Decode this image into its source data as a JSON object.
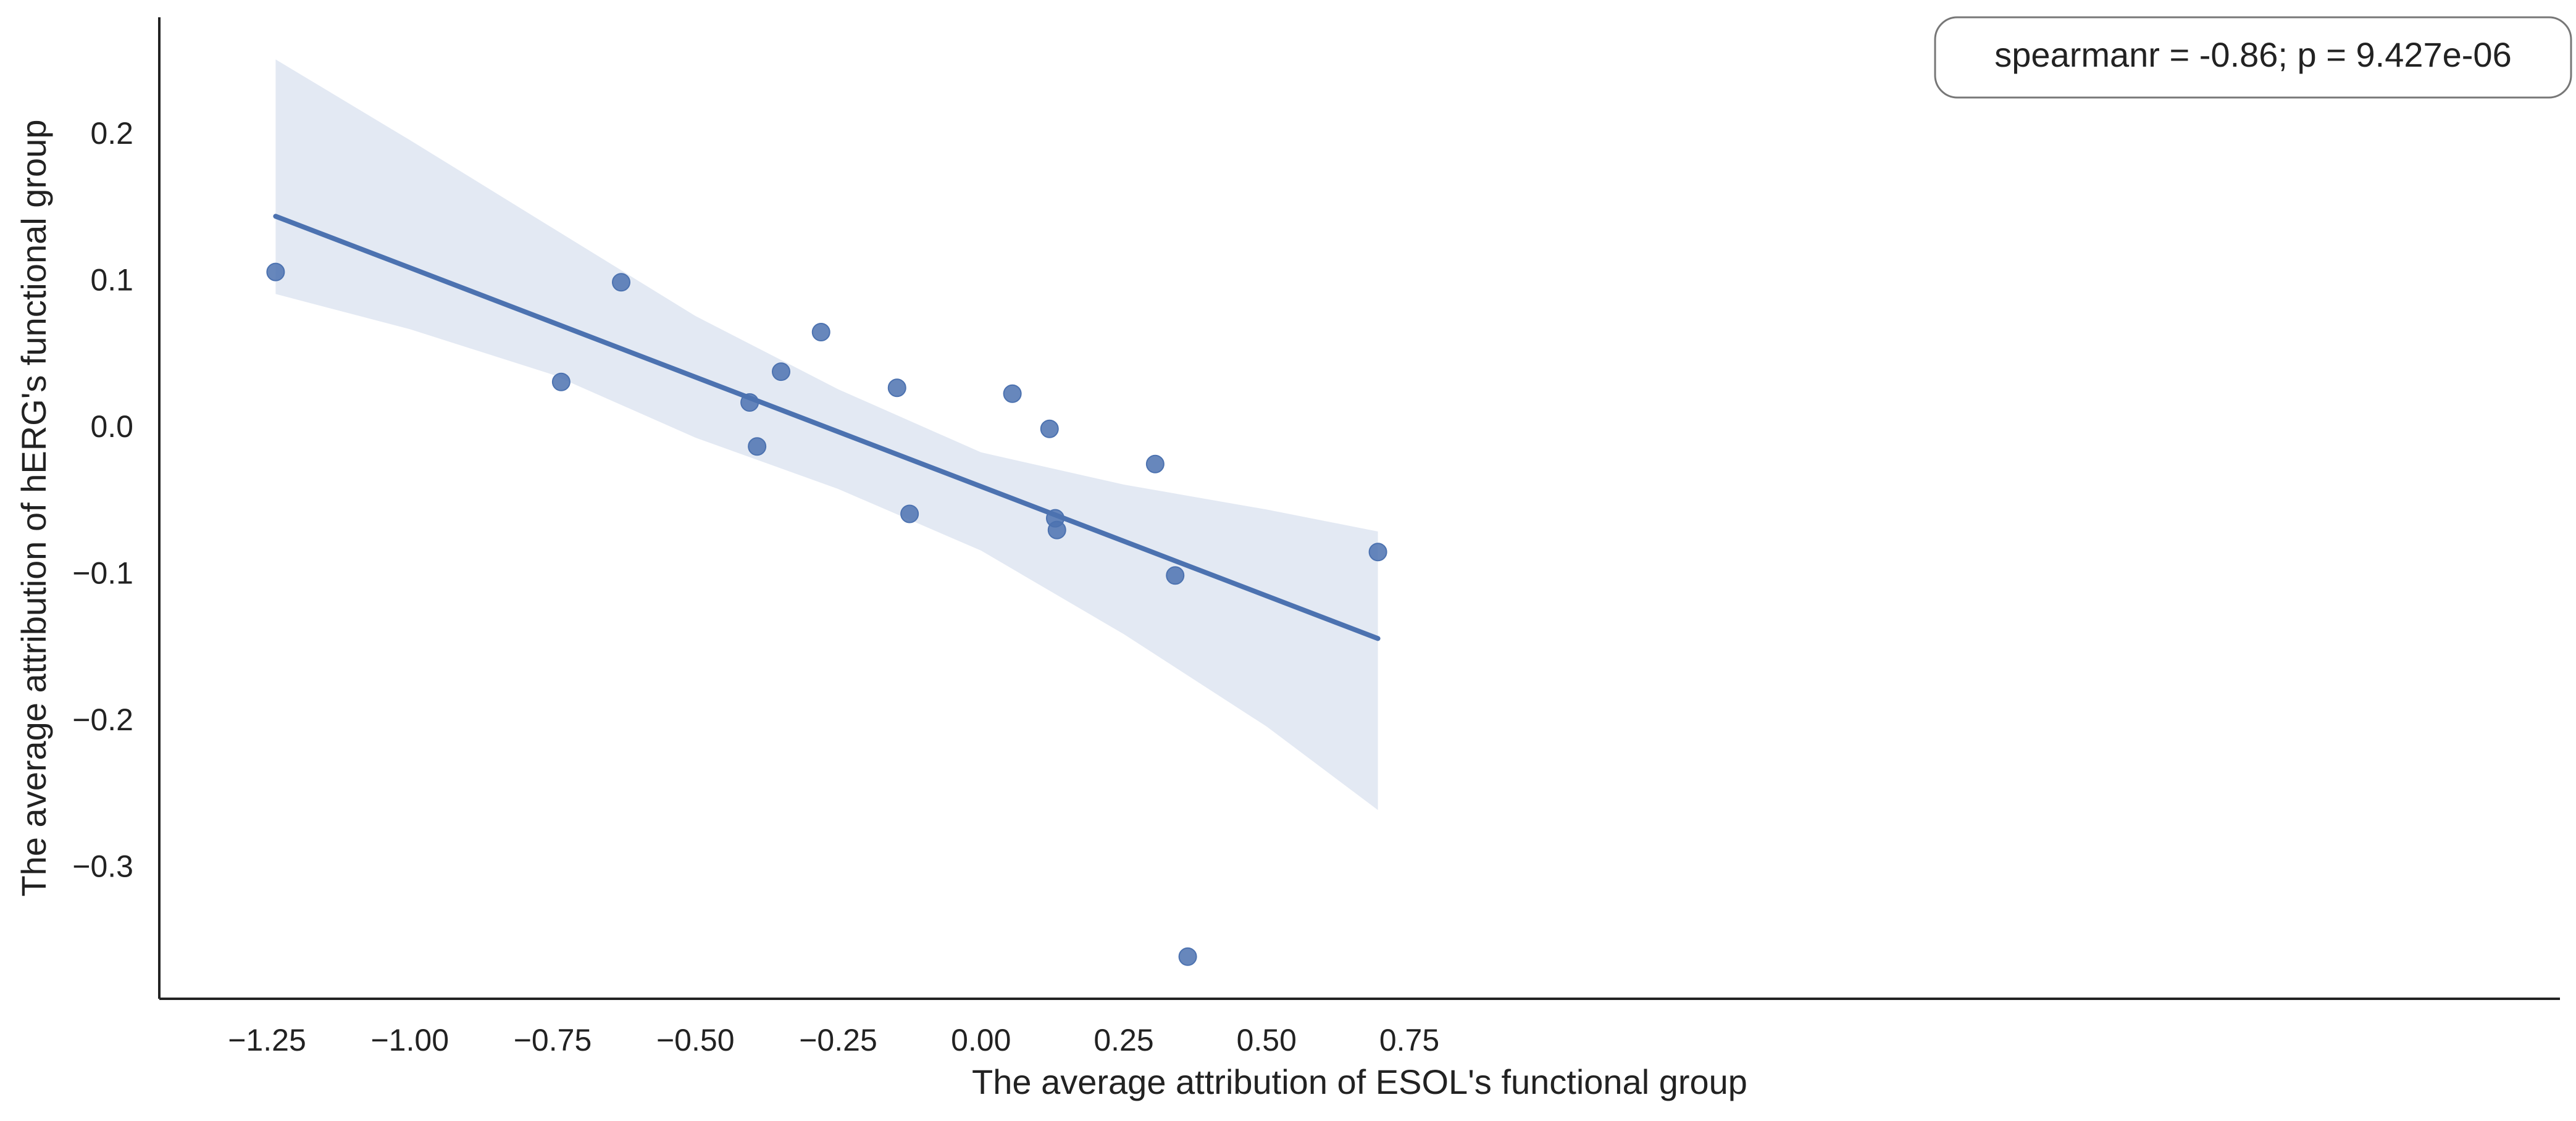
{
  "chart_data": {
    "type": "scatter",
    "title": "",
    "xlabel": "The average attribution of ESOL's functional group",
    "ylabel": "The average attribution of hERG's functional group",
    "annotation": "spearmanr = -0.86; p = 9.427e-06",
    "legend_position": "top-right",
    "grid": false,
    "xlim": [
      -1.35,
      0.78
    ],
    "ylim": [
      -0.392,
      0.282
    ],
    "x_ticks": [
      -1.25,
      -1.0,
      -0.75,
      -0.5,
      -0.25,
      0.0,
      0.25,
      0.5,
      0.75
    ],
    "x_tick_labels": [
      "−1.25",
      "−1.00",
      "−0.75",
      "−0.50",
      "−0.25",
      "0.00",
      "0.25",
      "0.50",
      "0.75"
    ],
    "y_ticks": [
      -0.3,
      -0.2,
      -0.1,
      0.0,
      0.1,
      0.2
    ],
    "y_tick_labels": [
      "−0.3",
      "−0.2",
      "−0.1",
      "0.0",
      "0.1",
      "0.2"
    ],
    "points": [
      {
        "x": -1.235,
        "y": 0.105
      },
      {
        "x": -0.735,
        "y": 0.03
      },
      {
        "x": -0.63,
        "y": 0.098
      },
      {
        "x": -0.405,
        "y": 0.016
      },
      {
        "x": -0.392,
        "y": -0.014
      },
      {
        "x": -0.35,
        "y": 0.037
      },
      {
        "x": -0.28,
        "y": 0.064
      },
      {
        "x": -0.147,
        "y": 0.026
      },
      {
        "x": -0.125,
        "y": -0.06
      },
      {
        "x": 0.055,
        "y": 0.022
      },
      {
        "x": 0.12,
        "y": -0.002
      },
      {
        "x": 0.13,
        "y": -0.063
      },
      {
        "x": 0.133,
        "y": -0.071
      },
      {
        "x": 0.305,
        "y": -0.026
      },
      {
        "x": 0.34,
        "y": -0.102
      },
      {
        "x": 0.362,
        "y": -0.362
      },
      {
        "x": 0.695,
        "y": -0.086
      }
    ],
    "regression_line": {
      "x": [
        -1.235,
        0.695
      ],
      "y": [
        0.143,
        -0.145
      ]
    },
    "confidence_band": {
      "x": [
        -1.235,
        -1.0,
        -0.75,
        -0.5,
        -0.25,
        0.0,
        0.25,
        0.5,
        0.695
      ],
      "upper": [
        0.25,
        0.195,
        0.135,
        0.075,
        0.025,
        -0.018,
        -0.04,
        -0.057,
        -0.072
      ],
      "lower": [
        0.09,
        0.066,
        0.035,
        -0.008,
        -0.043,
        -0.085,
        -0.142,
        -0.205,
        -0.262
      ]
    },
    "colors": {
      "points": "#4c72b0",
      "line": "#4c72b0",
      "band": "#e3e9f3",
      "axis": "#222222"
    }
  }
}
